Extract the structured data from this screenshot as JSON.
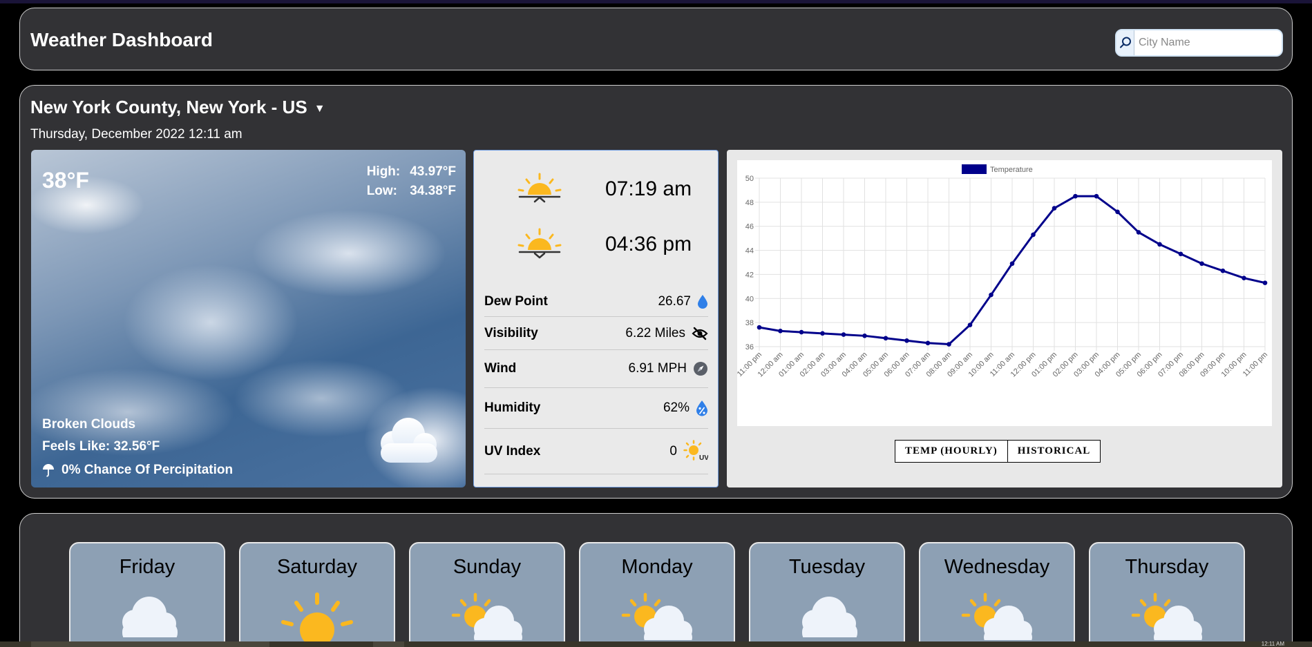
{
  "app": {
    "title": "Weather Dashboard"
  },
  "search": {
    "placeholder": "City Name",
    "icon": "search-icon"
  },
  "current": {
    "location": "New York County, New York - US",
    "datetime": "Thursday, December 2022 12:11 am",
    "temp": "38°F",
    "high_label": "High:",
    "high_value": "43.97°F",
    "low_label": "Low:",
    "low_value": "34.38°F",
    "description": "Broken Clouds",
    "feels_like": "Feels Like: 32.56°F",
    "precipitation": "0% Chance Of Percipitation"
  },
  "sun": {
    "sunrise": "07:19 am",
    "sunset": "04:36 pm"
  },
  "details": [
    {
      "label": "Dew Point",
      "value": "26.67",
      "icon": "water-drop-icon"
    },
    {
      "label": "Visibility",
      "value": "6.22 Miles",
      "icon": "eye-slash-icon"
    },
    {
      "label": "Wind",
      "value": "6.91 MPH",
      "icon": "compass-icon"
    },
    {
      "label": "Humidity",
      "value": "62%",
      "icon": "humidity-percent-icon"
    },
    {
      "label": "UV Index",
      "value": "0",
      "icon": "uv-sun-icon"
    }
  ],
  "chart_tabs": [
    "TEMP (HOURLY)",
    "HISTORICAL"
  ],
  "chart_data": {
    "type": "line",
    "legend": "top",
    "grid": true,
    "ylim": [
      36,
      50
    ],
    "yticks": [
      36,
      38,
      40,
      42,
      44,
      46,
      48,
      50
    ],
    "categories": [
      "11:00 pm",
      "12:00 am",
      "01:00 am",
      "02:00 am",
      "03:00 am",
      "04:00 am",
      "05:00 am",
      "06:00 am",
      "07:00 am",
      "08:00 am",
      "09:00 am",
      "10:00 am",
      "11:00 am",
      "12:00 pm",
      "01:00 pm",
      "02:00 pm",
      "03:00 pm",
      "04:00 pm",
      "05:00 pm",
      "06:00 pm",
      "07:00 pm",
      "08:00 pm",
      "09:00 pm",
      "10:00 pm",
      "11:00 pm"
    ],
    "series": [
      {
        "name": "Temperature",
        "color": "#00008b",
        "values": [
          37.6,
          37.3,
          37.2,
          37.1,
          37.0,
          36.9,
          36.7,
          36.5,
          36.3,
          36.2,
          37.8,
          40.3,
          42.9,
          45.3,
          47.5,
          48.5,
          48.5,
          47.2,
          45.5,
          44.5,
          43.7,
          42.9,
          42.3,
          41.7,
          41.3
        ]
      }
    ]
  },
  "forecast": [
    {
      "day": "Friday",
      "icon": "cloud-icon"
    },
    {
      "day": "Saturday",
      "icon": "sun-icon"
    },
    {
      "day": "Sunday",
      "icon": "partly-cloudy-icon"
    },
    {
      "day": "Monday",
      "icon": "partly-cloudy-icon"
    },
    {
      "day": "Tuesday",
      "icon": "cloud-icon"
    },
    {
      "day": "Wednesday",
      "icon": "partly-cloudy-icon"
    },
    {
      "day": "Thursday",
      "icon": "partly-cloudy-icon"
    }
  ],
  "taskbar": {
    "clock": "12:11 AM"
  },
  "colors": {
    "panel": "#323235",
    "series": "#00008b",
    "card": "#8da0b4",
    "accent_border": "#6e9ce0"
  }
}
